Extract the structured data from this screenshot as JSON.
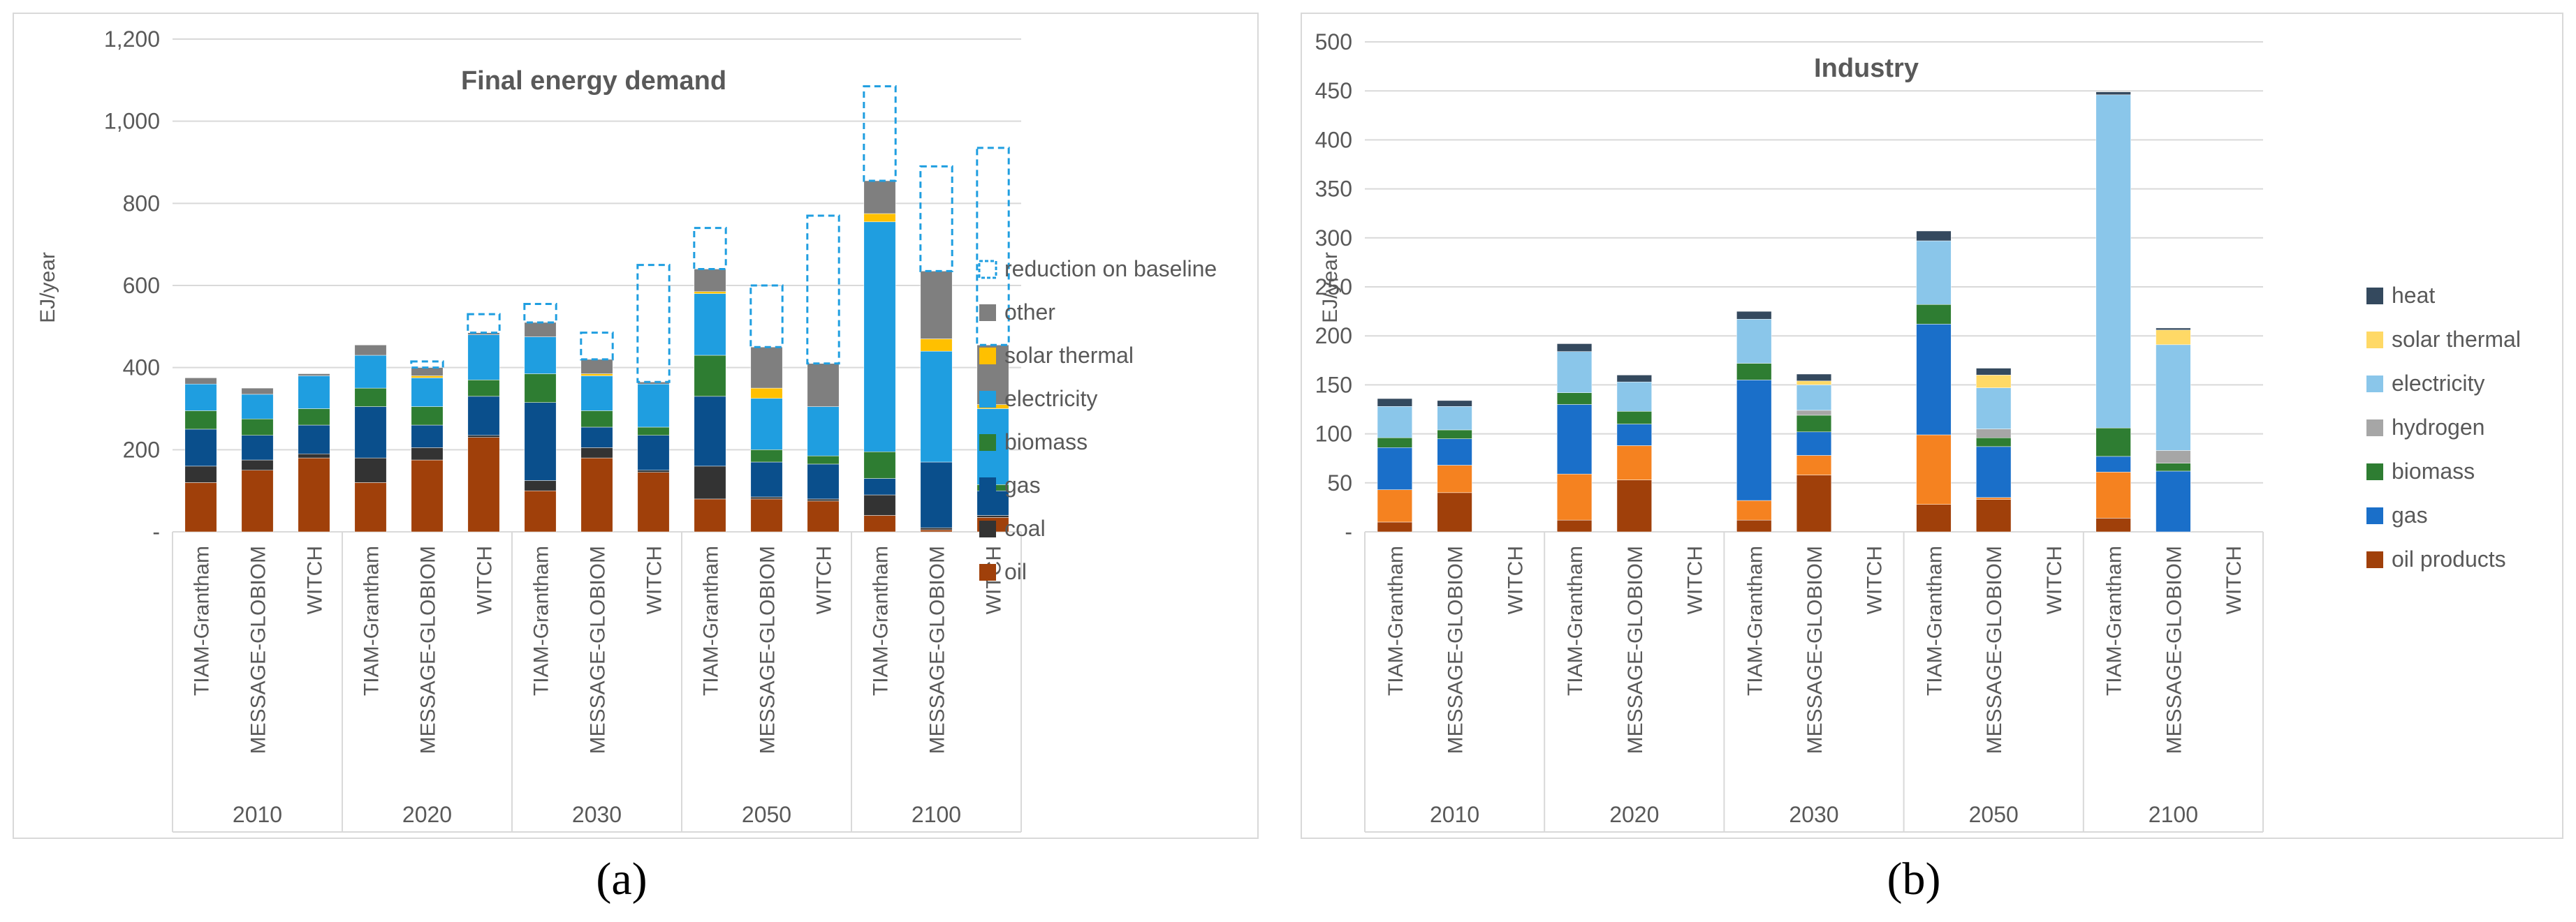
{
  "chart_data": [
    {
      "type": "bar",
      "stacked": true,
      "title": "Final energy demand",
      "ylabel": "EJ/year",
      "xlabel": "",
      "ylim": [
        0,
        1200
      ],
      "yticks": [
        0,
        200,
        400,
        600,
        800,
        1000,
        1200
      ],
      "ytick_labels": [
        "-",
        "200",
        "400",
        "600",
        "800",
        "1,000",
        "1,200"
      ],
      "groups": [
        "2010",
        "2020",
        "2030",
        "2050",
        "2100"
      ],
      "models": [
        "TIAM-Grantham",
        "MESSAGE-GLOBIOM",
        "WITCH"
      ],
      "series": [
        {
          "name": "oil",
          "color": "#a0400a",
          "values": [
            120,
            150,
            180,
            120,
            175,
            230,
            100,
            180,
            145,
            80,
            80,
            75,
            40,
            5,
            35
          ]
        },
        {
          "name": "coal",
          "color": "#333333",
          "values": [
            40,
            25,
            10,
            60,
            30,
            5,
            25,
            25,
            5,
            80,
            5,
            5,
            50,
            5,
            5
          ]
        },
        {
          "name": "gas",
          "color": "#0a4f8c",
          "values": [
            90,
            60,
            70,
            125,
            55,
            95,
            190,
            50,
            85,
            170,
            85,
            85,
            40,
            160,
            60
          ]
        },
        {
          "name": "biomass",
          "color": "#2e7d32",
          "values": [
            45,
            40,
            40,
            45,
            45,
            40,
            70,
            40,
            20,
            100,
            30,
            20,
            65,
            0,
            15
          ]
        },
        {
          "name": "electricity",
          "color": "#1f9ee0",
          "values": [
            65,
            60,
            80,
            80,
            70,
            110,
            90,
            85,
            105,
            150,
            125,
            120,
            560,
            270,
            185
          ]
        },
        {
          "name": "solar thermal",
          "color": "#ffc000",
          "values": [
            0,
            0,
            0,
            0,
            5,
            0,
            0,
            5,
            0,
            5,
            25,
            0,
            20,
            30,
            10
          ]
        },
        {
          "name": "other",
          "color": "#7f7f7f",
          "values": [
            15,
            15,
            5,
            25,
            20,
            5,
            35,
            35,
            5,
            55,
            100,
            105,
            80,
            165,
            145
          ]
        },
        {
          "name": "reduction on baseline",
          "color": "#1f9ee0",
          "style": "dashed-outline",
          "values": [
            0,
            0,
            0,
            0,
            15,
            45,
            45,
            65,
            285,
            100,
            150,
            360,
            230,
            255,
            480
          ]
        }
      ],
      "legend": [
        "reduction on baseline",
        "other",
        "solar thermal",
        "electricity",
        "biomass",
        "gas",
        "coal",
        "oil"
      ],
      "legend_position": "right"
    },
    {
      "type": "bar",
      "stacked": true,
      "title": "Industry",
      "ylabel": "EJ/year",
      "xlabel": "",
      "ylim": [
        0,
        500
      ],
      "yticks": [
        0,
        50,
        100,
        150,
        200,
        250,
        300,
        350,
        400,
        450,
        500
      ],
      "ytick_labels": [
        "-",
        "50",
        "100",
        "150",
        "200",
        "250",
        "300",
        "350",
        "400",
        "450",
        "500"
      ],
      "groups": [
        "2010",
        "2020",
        "2030",
        "2050",
        "2100"
      ],
      "models": [
        "TIAM-Grantham",
        "MESSAGE-GLOBIOM",
        "WITCH"
      ],
      "series": [
        {
          "name": "oil products",
          "color": "#a0400a",
          "values": [
            10,
            40,
            0,
            12,
            53,
            0,
            12,
            58,
            0,
            28,
            33,
            0,
            14,
            0,
            0
          ]
        },
        {
          "name": "orange",
          "legend": false,
          "color": "#f58220",
          "values": [
            33,
            28,
            0,
            47,
            35,
            0,
            20,
            20,
            0,
            71,
            2,
            0,
            47,
            0,
            0
          ]
        },
        {
          "name": "gas",
          "color": "#1a6fc9",
          "values": [
            43,
            27,
            0,
            71,
            22,
            0,
            123,
            24,
            0,
            113,
            52,
            0,
            16,
            62,
            0
          ]
        },
        {
          "name": "biomass",
          "color": "#2e7d32",
          "values": [
            10,
            9,
            0,
            12,
            13,
            0,
            17,
            17,
            0,
            20,
            9,
            0,
            29,
            8,
            0
          ]
        },
        {
          "name": "hydrogen",
          "color": "#a6a6a6",
          "values": [
            0,
            0,
            0,
            0,
            0,
            0,
            0,
            5,
            0,
            0,
            9,
            0,
            0,
            13,
            0
          ]
        },
        {
          "name": "electricity",
          "color": "#8ac6ea",
          "values": [
            32,
            24,
            0,
            42,
            30,
            0,
            45,
            26,
            0,
            65,
            42,
            0,
            340,
            108,
            0
          ]
        },
        {
          "name": "solar thermal",
          "color": "#ffd966",
          "values": [
            0,
            0,
            0,
            0,
            0,
            0,
            0,
            4,
            0,
            0,
            13,
            0,
            0,
            15,
            0
          ]
        },
        {
          "name": "heat",
          "color": "#34495e",
          "values": [
            8,
            6,
            0,
            8,
            7,
            0,
            8,
            7,
            0,
            10,
            7,
            0,
            3,
            2,
            0
          ]
        }
      ],
      "legend": [
        "heat",
        "solar thermal",
        "electricity",
        "hydrogen",
        "biomass",
        "gas",
        "oil products"
      ],
      "legend_position": "right"
    }
  ],
  "captions": {
    "a": "(a)",
    "b": "(b)"
  }
}
